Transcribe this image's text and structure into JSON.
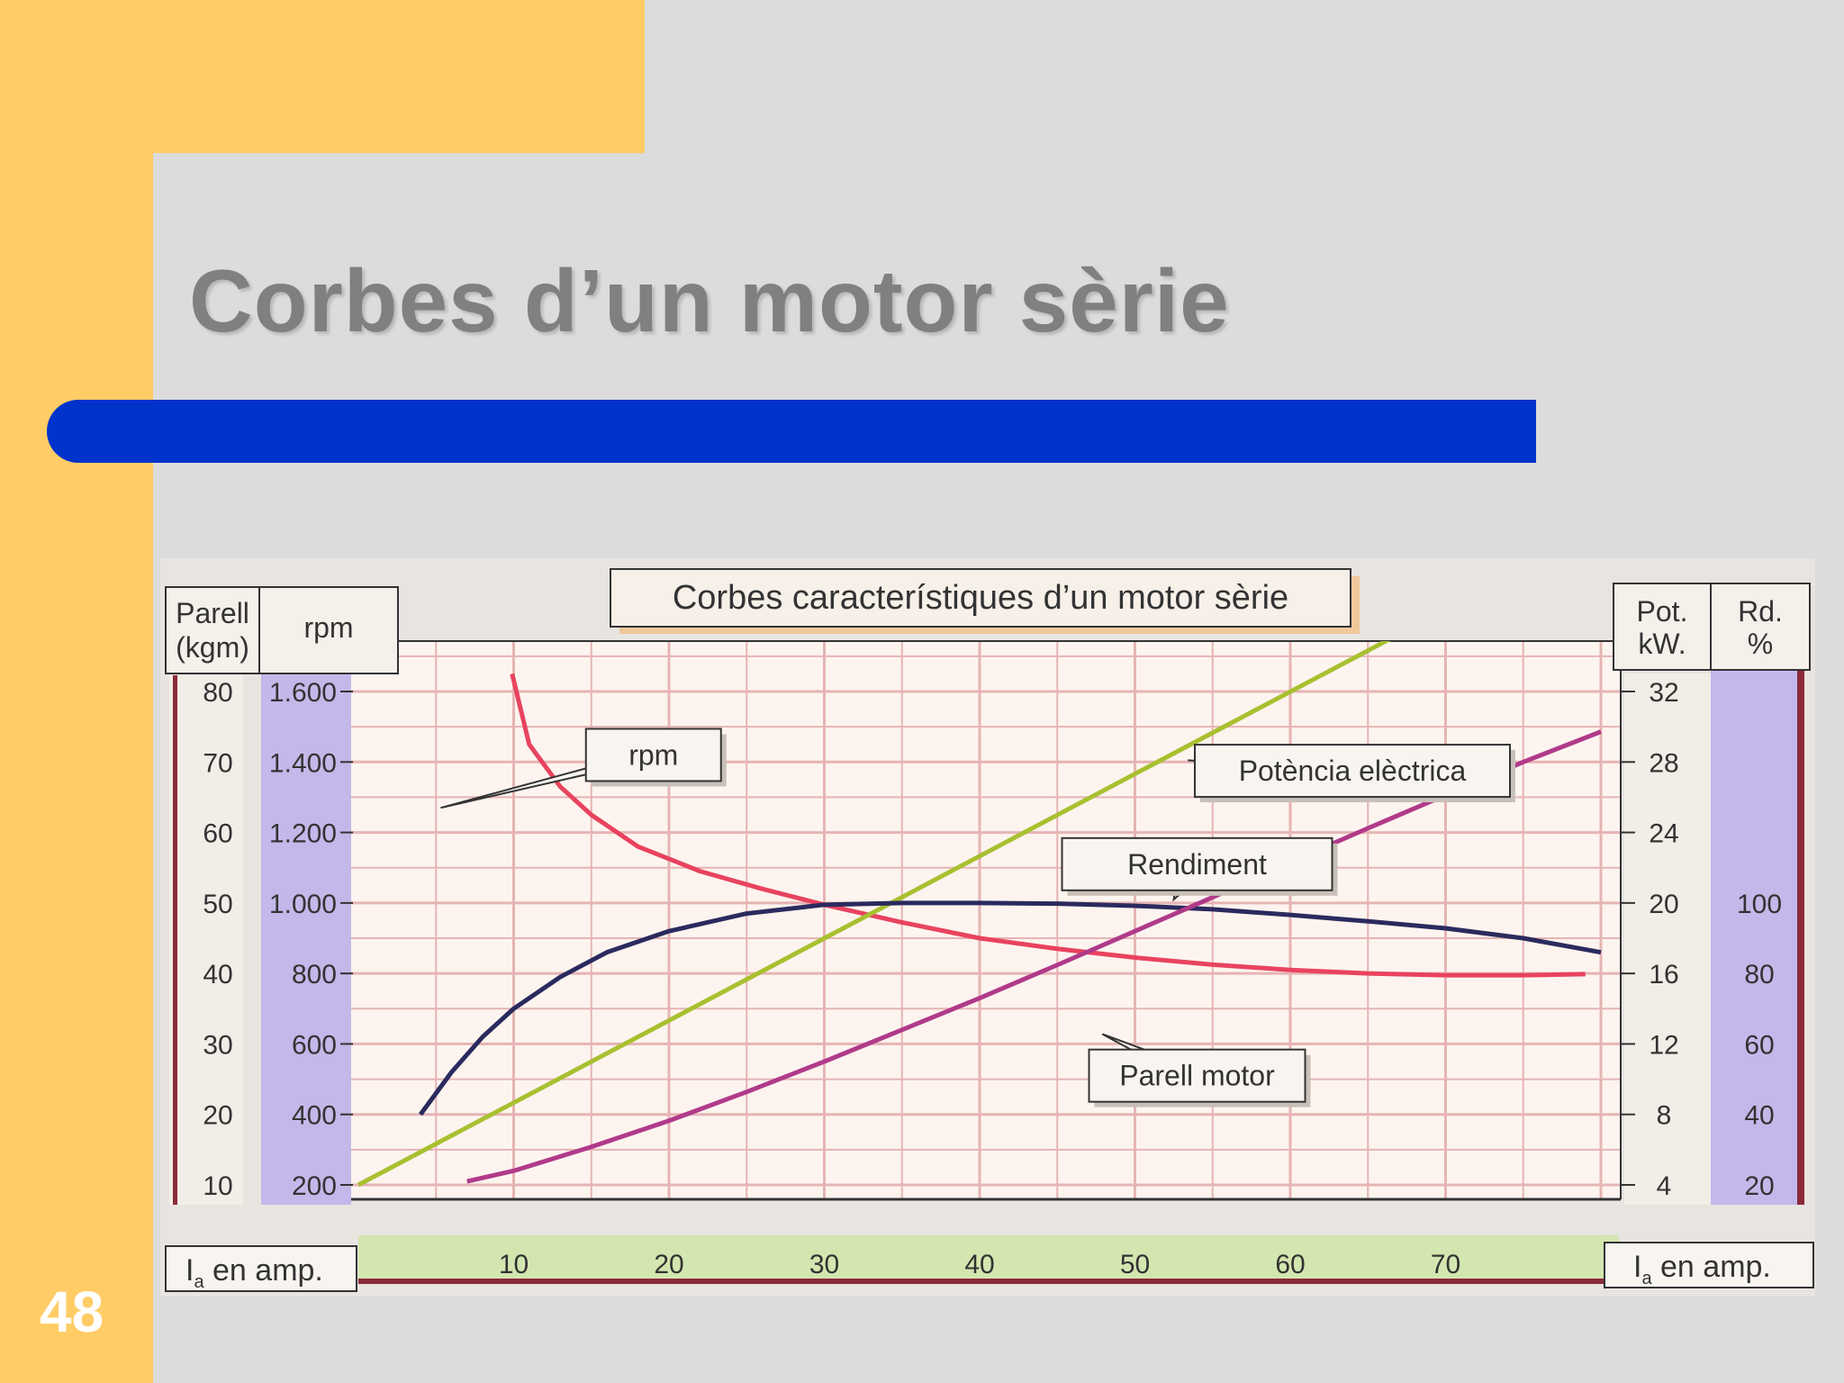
{
  "slide": {
    "title": "Corbes d’un motor sèrie",
    "number": "48"
  },
  "colors": {
    "yellow_band": "#ffcc66",
    "blue_bar": "#0033cc",
    "background": "#dcdcdc",
    "plot_bg": "#fdf4ef",
    "grid": "#e6b4b4",
    "green_axis_band": "#d4e6b0",
    "purple_axis_band": "#c4b8ea",
    "dark_red_axis_line": "#8b2a3a"
  },
  "chart_data": {
    "type": "line",
    "title": "Corbes característiques d’un motor sèrie",
    "x": {
      "label_left": "Ia en amp.",
      "label_right": "Ia en amp.",
      "label_main": "I",
      "label_sub": "a",
      "label_rest": " en amp.",
      "range": [
        0,
        80
      ],
      "ticks": [
        10,
        20,
        30,
        40,
        50,
        60,
        70
      ]
    },
    "axes": {
      "parell": {
        "label_line1": "Parell",
        "label_line2": "(kgm)",
        "ticks": [
          "80",
          "70",
          "60",
          "50",
          "40",
          "30",
          "20",
          "10"
        ],
        "range": [
          10,
          80
        ]
      },
      "rpm": {
        "label": "rpm",
        "ticks": [
          "1.600",
          "1.400",
          "1.200",
          "1.000",
          "800",
          "600",
          "400",
          "200"
        ],
        "range": [
          200,
          1600
        ]
      },
      "pot": {
        "label_line1": "Pot.",
        "label_line2": "kW.",
        "ticks": [
          "32",
          "28",
          "24",
          "20",
          "16",
          "12",
          "8",
          "4"
        ],
        "range": [
          4,
          32
        ]
      },
      "rd": {
        "label_line1": "Rd.",
        "label_line2": "%",
        "ticks": [
          "100",
          "80",
          "60",
          "40",
          "20"
        ],
        "range": [
          0,
          100
        ]
      }
    },
    "series": [
      {
        "name": "rpm",
        "color": "#e8435f",
        "axis": "rpm",
        "points": [
          [
            9.9,
            1650
          ],
          [
            11,
            1450
          ],
          [
            13,
            1330
          ],
          [
            15,
            1250
          ],
          [
            18,
            1160
          ],
          [
            22,
            1090
          ],
          [
            26,
            1040
          ],
          [
            30,
            995
          ],
          [
            35,
            945
          ],
          [
            40,
            900
          ],
          [
            45,
            870
          ],
          [
            50,
            845
          ],
          [
            55,
            825
          ],
          [
            60,
            810
          ],
          [
            65,
            800
          ],
          [
            70,
            795
          ],
          [
            75,
            795
          ],
          [
            79,
            798
          ]
        ]
      },
      {
        "name": "Potència elèctrica",
        "color": "#a8c030",
        "axis": "pot",
        "points": [
          [
            0,
            4
          ],
          [
            68.6,
            36
          ]
        ]
      },
      {
        "name": "Rendiment",
        "color": "#2a2a5e",
        "axis": "rd",
        "points": [
          [
            4,
            40
          ],
          [
            6,
            52
          ],
          [
            8,
            62
          ],
          [
            10,
            70
          ],
          [
            13,
            79
          ],
          [
            16,
            86
          ],
          [
            20,
            92
          ],
          [
            25,
            97
          ],
          [
            30,
            99.5
          ],
          [
            35,
            100
          ],
          [
            40,
            100
          ],
          [
            45,
            99.8
          ],
          [
            50,
            99.2
          ],
          [
            55,
            98.2
          ],
          [
            60,
            96.6
          ],
          [
            65,
            94.8
          ],
          [
            70,
            92.8
          ],
          [
            75,
            90
          ],
          [
            80,
            86
          ]
        ]
      },
      {
        "name": "Parell motor",
        "color": "#b03a8a",
        "axis": "parell",
        "points": [
          [
            7,
            10.5
          ],
          [
            10,
            12
          ],
          [
            15,
            15.4
          ],
          [
            20,
            19.1
          ],
          [
            25,
            23.2
          ],
          [
            30,
            27.5
          ],
          [
            35,
            32
          ],
          [
            40,
            36.5
          ],
          [
            45,
            41.2
          ],
          [
            50,
            46
          ],
          [
            55,
            50.8
          ],
          [
            60,
            55.8
          ],
          [
            65,
            60.6
          ],
          [
            70,
            65.3
          ],
          [
            75,
            70
          ],
          [
            80,
            74.3
          ]
        ]
      }
    ],
    "annotations": [
      {
        "text": "rpm",
        "series": "rpm"
      },
      {
        "text": "Potència elèctrica",
        "series": "Potència elèctrica"
      },
      {
        "text": "Rendiment",
        "series": "Rendiment"
      },
      {
        "text": "Parell motor",
        "series": "Parell motor"
      }
    ],
    "grid": true
  }
}
